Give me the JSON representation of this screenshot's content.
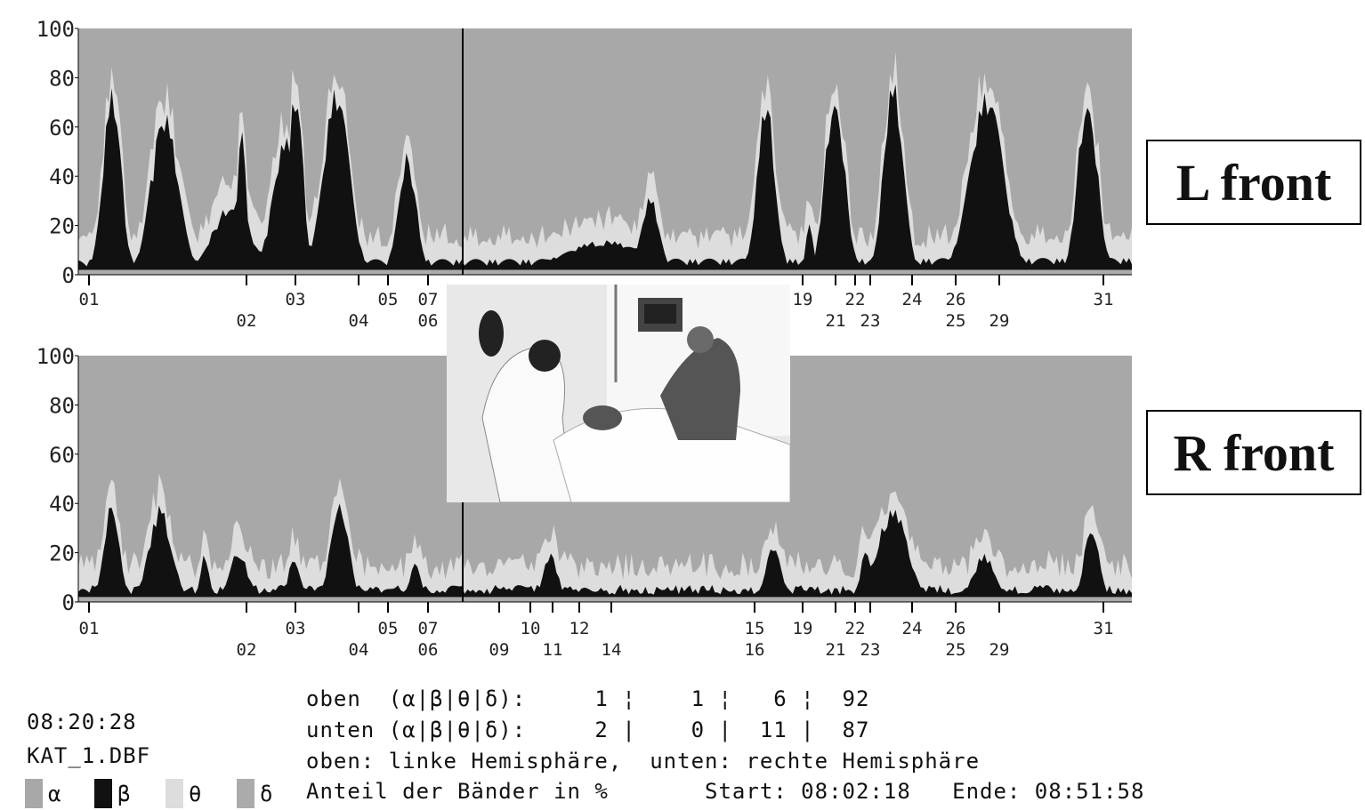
{
  "colors": {
    "alpha": "#a8a8a8",
    "beta": "#111111",
    "theta": "#dddddd",
    "delta": "#ababab"
  },
  "chart_data": [
    {
      "type": "area",
      "label": "L front",
      "ylim": [
        0,
        100
      ],
      "yticks": [
        "100",
        "80",
        "60",
        "40",
        "20",
        "0"
      ],
      "marker_row1": [
        "01",
        "03",
        "05",
        "07",
        "19",
        "22",
        "24",
        "26",
        "31"
      ],
      "marker_row2": [
        "02",
        "04",
        "06",
        "21",
        "23",
        "25",
        "29"
      ],
      "beta_peaks": [
        {
          "center": 0.032,
          "width": 0.012,
          "height": 78
        },
        {
          "center": 0.082,
          "width": 0.018,
          "height": 67
        },
        {
          "center": 0.145,
          "width": 0.025,
          "height": 30
        },
        {
          "center": 0.155,
          "width": 0.006,
          "height": 63
        },
        {
          "center": 0.197,
          "width": 0.017,
          "height": 58
        },
        {
          "center": 0.206,
          "width": 0.01,
          "height": 80
        },
        {
          "center": 0.245,
          "width": 0.017,
          "height": 82
        },
        {
          "center": 0.312,
          "width": 0.012,
          "height": 52
        },
        {
          "center": 0.5,
          "width": 0.06,
          "height": 14
        },
        {
          "center": 0.543,
          "width": 0.012,
          "height": 34
        },
        {
          "center": 0.653,
          "width": 0.012,
          "height": 72
        },
        {
          "center": 0.694,
          "width": 0.005,
          "height": 22
        },
        {
          "center": 0.718,
          "width": 0.013,
          "height": 78
        },
        {
          "center": 0.774,
          "width": 0.013,
          "height": 82
        },
        {
          "center": 0.862,
          "width": 0.022,
          "height": 78
        },
        {
          "center": 0.958,
          "width": 0.013,
          "height": 78
        }
      ]
    },
    {
      "type": "area",
      "label": "R front",
      "ylim": [
        0,
        100
      ],
      "yticks": [
        "100",
        "80",
        "60",
        "40",
        "20",
        "0"
      ],
      "marker_row1": [
        "01",
        "03",
        "05",
        "07",
        "10",
        "12",
        "15",
        "19",
        "22",
        "24",
        "26",
        "31"
      ],
      "marker_row2": [
        "02",
        "04",
        "06",
        "09",
        "11",
        "14",
        "16",
        "21",
        "23",
        "25",
        "29"
      ],
      "beta_peaks": [
        {
          "center": 0.032,
          "width": 0.01,
          "height": 44
        },
        {
          "center": 0.078,
          "width": 0.015,
          "height": 40
        },
        {
          "center": 0.12,
          "width": 0.006,
          "height": 20
        },
        {
          "center": 0.152,
          "width": 0.012,
          "height": 22
        },
        {
          "center": 0.205,
          "width": 0.008,
          "height": 20
        },
        {
          "center": 0.248,
          "width": 0.012,
          "height": 42
        },
        {
          "center": 0.32,
          "width": 0.007,
          "height": 18
        },
        {
          "center": 0.448,
          "width": 0.01,
          "height": 20
        },
        {
          "center": 0.66,
          "width": 0.01,
          "height": 25
        },
        {
          "center": 0.748,
          "width": 0.008,
          "height": 22
        },
        {
          "center": 0.773,
          "width": 0.02,
          "height": 40
        },
        {
          "center": 0.86,
          "width": 0.015,
          "height": 20
        },
        {
          "center": 0.962,
          "width": 0.01,
          "height": 34
        }
      ]
    }
  ],
  "labels": {
    "top": "L front",
    "bottom": "R front"
  },
  "info": {
    "time": "08:20:28",
    "file": "KAT_1.DBF",
    "line1": "oben  (α|β|θ|δ):     1 ¦    1 ¦   6 ¦  92",
    "line2": "unten (α|β|θ|δ):     2 |    0 |  11 |  87",
    "line3": "oben: linke Hemisphäre,  unten: rechte Hemisphäre",
    "line4": "Anteil der Bänder in %       Start: 08:02:18   Ende: 08:51:58"
  },
  "legend": [
    {
      "symbol": "α",
      "color_key": "alpha"
    },
    {
      "symbol": "β",
      "color_key": "beta"
    },
    {
      "symbol": "θ",
      "color_key": "theta"
    },
    {
      "symbol": "δ",
      "color_key": "delta"
    }
  ],
  "photo": {
    "icon": "patient-care-photo"
  }
}
